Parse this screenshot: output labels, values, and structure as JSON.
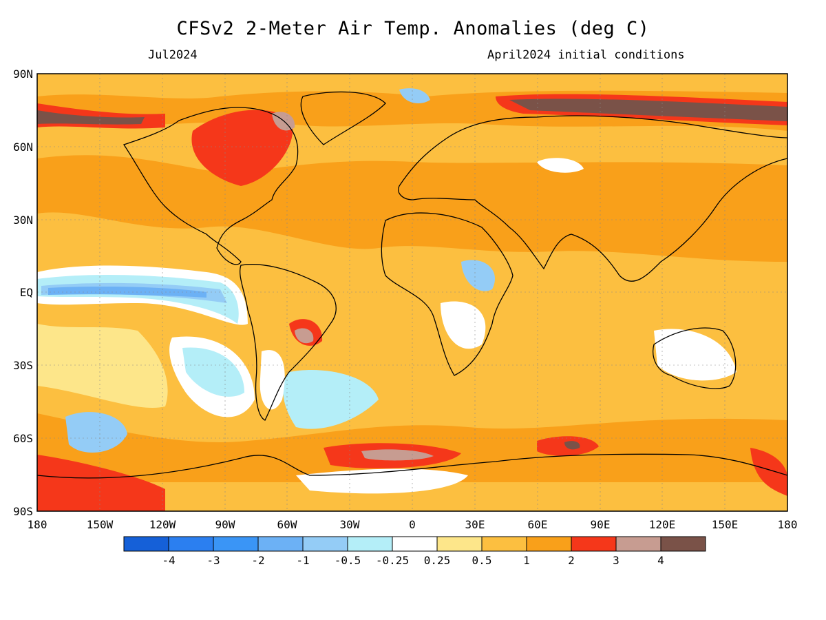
{
  "title": "CFSv2 2-Meter Air Temp. Anomalies (deg C)",
  "valid_month": "Jul2024",
  "initial_conditions": "April2024 initial conditions",
  "axes": {
    "lat_labels": [
      "90N",
      "60N",
      "30N",
      "EQ",
      "30S",
      "60S",
      "90S"
    ],
    "lon_labels": [
      "180",
      "150W",
      "120W",
      "90W",
      "60W",
      "30W",
      "0",
      "30E",
      "60E",
      "90E",
      "120E",
      "150E",
      "180"
    ]
  },
  "colorbar": {
    "colors": [
      "#1560d8",
      "#2b7ff0",
      "#3a95f6",
      "#6cb1f5",
      "#94ccf6",
      "#b4eef8",
      "#ffffff",
      "#fde68a",
      "#fcbf40",
      "#f9a01a",
      "#f5371a",
      "#c79c91",
      "#7a5248"
    ],
    "labels": [
      "-4",
      "-3",
      "-2",
      "-1",
      "-0.5",
      "-0.25",
      "0.25",
      "0.5",
      "1",
      "2",
      "3",
      "4"
    ]
  },
  "colors": {
    "background_anomaly": "#fcbf40",
    "coastline": "#000000"
  }
}
